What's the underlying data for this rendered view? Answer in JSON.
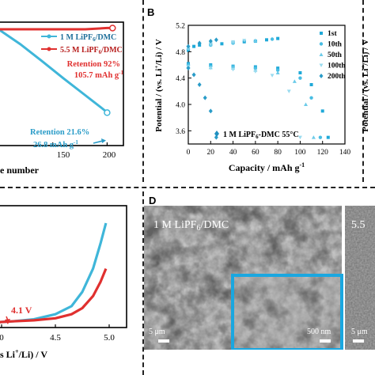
{
  "panels": {
    "A": {
      "legend": [
        {
          "label_main": "1  M LiPF",
          "label_sub": "6",
          "label_tail": "/DMC",
          "color": "#3fb6d9"
        },
        {
          "label_main": "5.5 M LiPF",
          "label_sub": "6",
          "label_tail": "/DMC",
          "color": "#e0302f"
        }
      ],
      "retention_red": {
        "line1": "Retention 92%",
        "line2_main": "105.7 mAh g",
        "line2_sup": "-1"
      },
      "retention_blue": {
        "line1": "Retention  21.6%",
        "line2_main": "26.8 mAh g",
        "line2_sup": "-1"
      },
      "xticks": [
        "150",
        "200"
      ],
      "xlabel": "e number"
    },
    "B": {
      "letter": "B",
      "ylabel": "Potential / (vs. Li",
      "ylabel_sup": "+",
      "ylabel_tail": "/Li) / V",
      "yticks": [
        "5.2",
        "4.8",
        "4.4",
        "4.0",
        "3.6"
      ],
      "xticks": [
        "0",
        "20",
        "40",
        "60",
        "80",
        "100",
        "120",
        "140"
      ],
      "xlabel_main": "Capacity / mAh g",
      "xlabel_sup": "-1",
      "legend": [
        "1st",
        "10th",
        "50th",
        "100th",
        "200th"
      ],
      "annotation_main": "1 M LiPF",
      "annotation_sub": "6",
      "annotation_tail": "-DMC 55°C",
      "right_ylabel": "Potential / (vs. Li",
      "right_ylabel_sup": "+",
      "right_ylabel_tail": "/Li) / V"
    },
    "C": {
      "annotation": "4.1 V",
      "xticks": [
        "0",
        "4.5",
        "5.0"
      ],
      "xlabel_main": "s Li",
      "xlabel_sup": "+",
      "xlabel_tail": "/Li) / V"
    },
    "D": {
      "letter": "D",
      "title_main": "1 M LiPF",
      "title_sub": "6",
      "title_tail": "/DMC",
      "scale_main": "5 μm",
      "scale_inset": "500 nm",
      "right_title": "5.5",
      "right_scale": "5 μm"
    }
  },
  "chart_data": [
    {
      "type": "line",
      "panel": "A",
      "xlabel": "e number",
      "xlim": [
        100,
        215
      ],
      "series": [
        {
          "name": "1  M LiPF6/DMC",
          "color": "#3fb6d9",
          "x": [
            100,
            120,
            140,
            160,
            180,
            195,
            200
          ],
          "y": [
            100,
            88,
            74,
            60,
            46,
            36,
            32
          ]
        },
        {
          "name": "5.5 M LiPF6/DMC",
          "color": "#e0302f",
          "x": [
            100,
            120,
            140,
            160,
            180,
            200,
            205
          ],
          "y": [
            100,
            100,
            100,
            100,
            100,
            101,
            101
          ]
        }
      ]
    },
    {
      "type": "scatter",
      "panel": "B",
      "xlabel": "Capacity / mAh g-1",
      "ylabel": "Potential / (vs. Li+/Li) / V",
      "xlim": [
        0,
        140
      ],
      "ylim": [
        3.4,
        5.2
      ],
      "series": [
        {
          "name": "1st",
          "color": "#1fa9d8",
          "charge": {
            "x": [
              0,
              5,
              10,
              20,
              30,
              40,
              50,
              60,
              70,
              80
            ],
            "y": [
              4.82,
              4.88,
              4.9,
              4.91,
              4.92,
              4.94,
              4.95,
              4.96,
              4.98,
              5.0
            ]
          },
          "discharge": {
            "x": [
              0,
              20,
              40,
              60,
              80,
              100,
              110,
              120,
              125
            ],
            "y": [
              4.62,
              4.6,
              4.58,
              4.57,
              4.55,
              4.48,
              4.3,
              3.9,
              3.5
            ]
          }
        },
        {
          "name": "10th",
          "color": "#47bde3",
          "charge": {
            "x": [
              0,
              20,
              40,
              60,
              75
            ],
            "y": [
              4.84,
              4.9,
              4.93,
              4.96,
              4.99
            ]
          },
          "discharge": {
            "x": [
              0,
              20,
              40,
              60,
              80,
              100,
              110,
              118
            ],
            "y": [
              4.6,
              4.58,
              4.57,
              4.55,
              4.52,
              4.4,
              4.1,
              3.5
            ]
          }
        },
        {
          "name": "50th",
          "color": "#6ccbe9",
          "charge": {
            "x": [
              0,
              20,
              40,
              60
            ],
            "y": [
              4.85,
              4.91,
              4.94,
              4.97
            ]
          },
          "discharge": {
            "x": [
              0,
              20,
              40,
              60,
              80,
              95,
              105,
              112
            ],
            "y": [
              4.58,
              4.56,
              4.55,
              4.52,
              4.48,
              4.35,
              4.0,
              3.5
            ]
          }
        },
        {
          "name": "100th",
          "color": "#99dbef",
          "charge": {
            "x": [
              0,
              20,
              40,
              50
            ],
            "y": [
              4.86,
              4.92,
              4.95,
              4.97
            ]
          },
          "discharge": {
            "x": [
              0,
              20,
              40,
              60,
              75,
              90,
              100
            ],
            "y": [
              4.57,
              4.55,
              4.53,
              4.5,
              4.44,
              4.2,
              3.5
            ]
          }
        },
        {
          "name": "200th",
          "color": "#2a9cc8",
          "charge": {
            "x": [
              0,
              10,
              20,
              25
            ],
            "y": [
              4.88,
              4.93,
              4.96,
              4.98
            ]
          },
          "discharge": {
            "x": [
              0,
              5,
              10,
              15,
              20,
              25
            ],
            "y": [
              4.55,
              4.45,
              4.3,
              4.1,
              3.9,
              3.5
            ]
          }
        }
      ]
    },
    {
      "type": "line",
      "panel": "C",
      "xlim": [
        3.95,
        5.2
      ],
      "series": [
        {
          "name": "1 M LiPF6/DMC",
          "color": "#3fb6d9",
          "x": [
            3.95,
            4.1,
            4.3,
            4.5,
            4.65,
            4.75,
            4.85,
            4.92,
            4.97
          ],
          "y": [
            0.02,
            0.03,
            0.05,
            0.1,
            0.18,
            0.32,
            0.55,
            0.8,
            1.0
          ]
        },
        {
          "name": "5.5 M LiPF6/DMC",
          "color": "#e0302f",
          "x": [
            3.95,
            4.1,
            4.3,
            4.5,
            4.65,
            4.75,
            4.85,
            4.92,
            4.97
          ],
          "y": [
            0.02,
            0.03,
            0.04,
            0.06,
            0.1,
            0.16,
            0.28,
            0.42,
            0.55
          ]
        }
      ]
    }
  ]
}
